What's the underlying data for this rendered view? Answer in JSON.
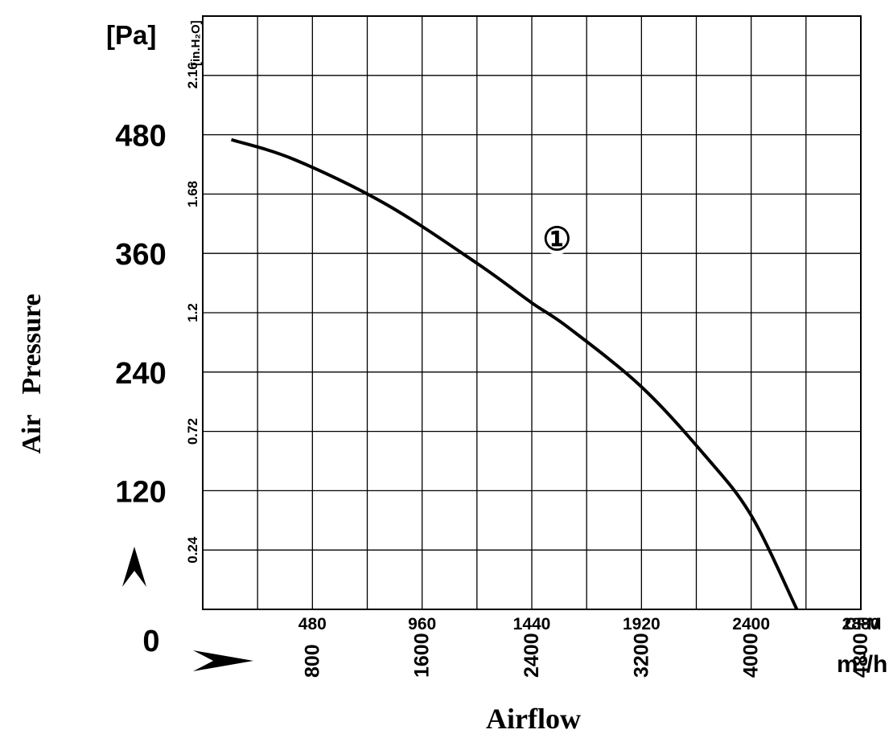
{
  "chart_data": {
    "type": "line",
    "title": "",
    "xlabel": "Airflow",
    "ylabel": "Air   Pressure",
    "x_unit_primary": "CFM",
    "x_unit_secondary": "m³/h",
    "x_unit_secondary_base": "m",
    "x_unit_secondary_sup": "3",
    "x_unit_secondary_tail": "/h",
    "y_unit_primary": "[Pa]",
    "y_unit_secondary": "[in.H₂O]",
    "xlim": [
      0,
      2880
    ],
    "ylim": [
      0,
      600
    ],
    "grid": true,
    "x_ticks_cfm": [
      "480",
      "960",
      "1440",
      "1920",
      "2400",
      "2880"
    ],
    "x_ticks_m3h": [
      "800",
      "1600",
      "2400",
      "3200",
      "4000",
      "4800"
    ],
    "y_ticks_pa": [
      "0",
      "120",
      "240",
      "360",
      "480"
    ],
    "y_ticks_inh2o": [
      "0.24",
      "0.72",
      "1.2",
      "1.68",
      "2.16"
    ],
    "series": [
      {
        "name": "①",
        "x": [
          125,
          400,
          800,
          1200,
          1440,
          1600,
          1920,
          2200,
          2400,
          2600
        ],
        "y": [
          475,
          455,
          410,
          350,
          310,
          285,
          225,
          155,
          95,
          0
        ]
      }
    ],
    "annotations": [
      {
        "text": "①",
        "x": 1550,
        "y": 375
      }
    ]
  }
}
